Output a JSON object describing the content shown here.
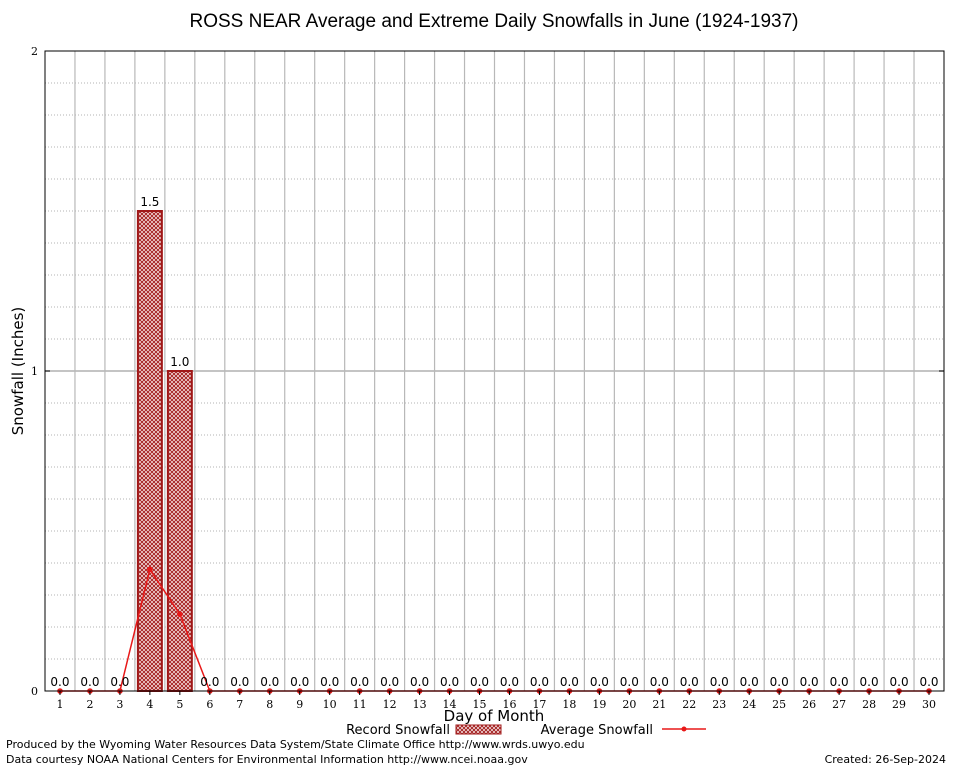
{
  "chart_data": {
    "type": "bar",
    "title": "ROSS NEAR Average and Extreme Daily Snowfalls in June (1924-1937)",
    "xlabel": "Day of Month",
    "ylabel": "Snowfall (Inches)",
    "ylim": [
      0,
      2
    ],
    "yticks": [
      "0",
      "1",
      "2"
    ],
    "grid": true,
    "legend_placement": "bottom",
    "categories": [
      "1",
      "2",
      "3",
      "4",
      "5",
      "6",
      "7",
      "8",
      "9",
      "10",
      "11",
      "12",
      "13",
      "14",
      "15",
      "16",
      "17",
      "18",
      "19",
      "20",
      "21",
      "22",
      "23",
      "24",
      "25",
      "26",
      "27",
      "28",
      "29",
      "30"
    ],
    "series": [
      {
        "name": "Record Snowfall",
        "kind": "bar",
        "color": "#a01818",
        "values": [
          0,
          0,
          0,
          1.5,
          1.0,
          0,
          0,
          0,
          0,
          0,
          0,
          0,
          0,
          0,
          0,
          0,
          0,
          0,
          0,
          0,
          0,
          0,
          0,
          0,
          0,
          0,
          0,
          0,
          0,
          0
        ],
        "labels": [
          "0.0",
          "0.0",
          "0.0",
          "1.5",
          "1.0",
          "0.0",
          "0.0",
          "0.0",
          "0.0",
          "0.0",
          "0.0",
          "0.0",
          "0.0",
          "0.0",
          "0.0",
          "0.0",
          "0.0",
          "0.0",
          "0.0",
          "0.0",
          "0.0",
          "0.0",
          "0.0",
          "0.0",
          "0.0",
          "0.0",
          "0.0",
          "0.0",
          "0.0",
          "0.0"
        ]
      },
      {
        "name": "Average Snowfall",
        "kind": "line",
        "color": "#e81818",
        "values": [
          0,
          0,
          0,
          0.38,
          0.24,
          0,
          0,
          0,
          0,
          0,
          0,
          0,
          0,
          0,
          0,
          0,
          0,
          0,
          0,
          0,
          0,
          0,
          0,
          0,
          0,
          0,
          0,
          0,
          0,
          0
        ]
      }
    ]
  },
  "footer": {
    "line1": "Produced by the Wyoming Water Resources Data System/State Climate Office http://www.wrds.uwyo.edu",
    "line2": "Data courtesy NOAA National Centers for Environmental Information http://www.ncei.noaa.gov",
    "created": "Created:  26-Sep-2024"
  }
}
